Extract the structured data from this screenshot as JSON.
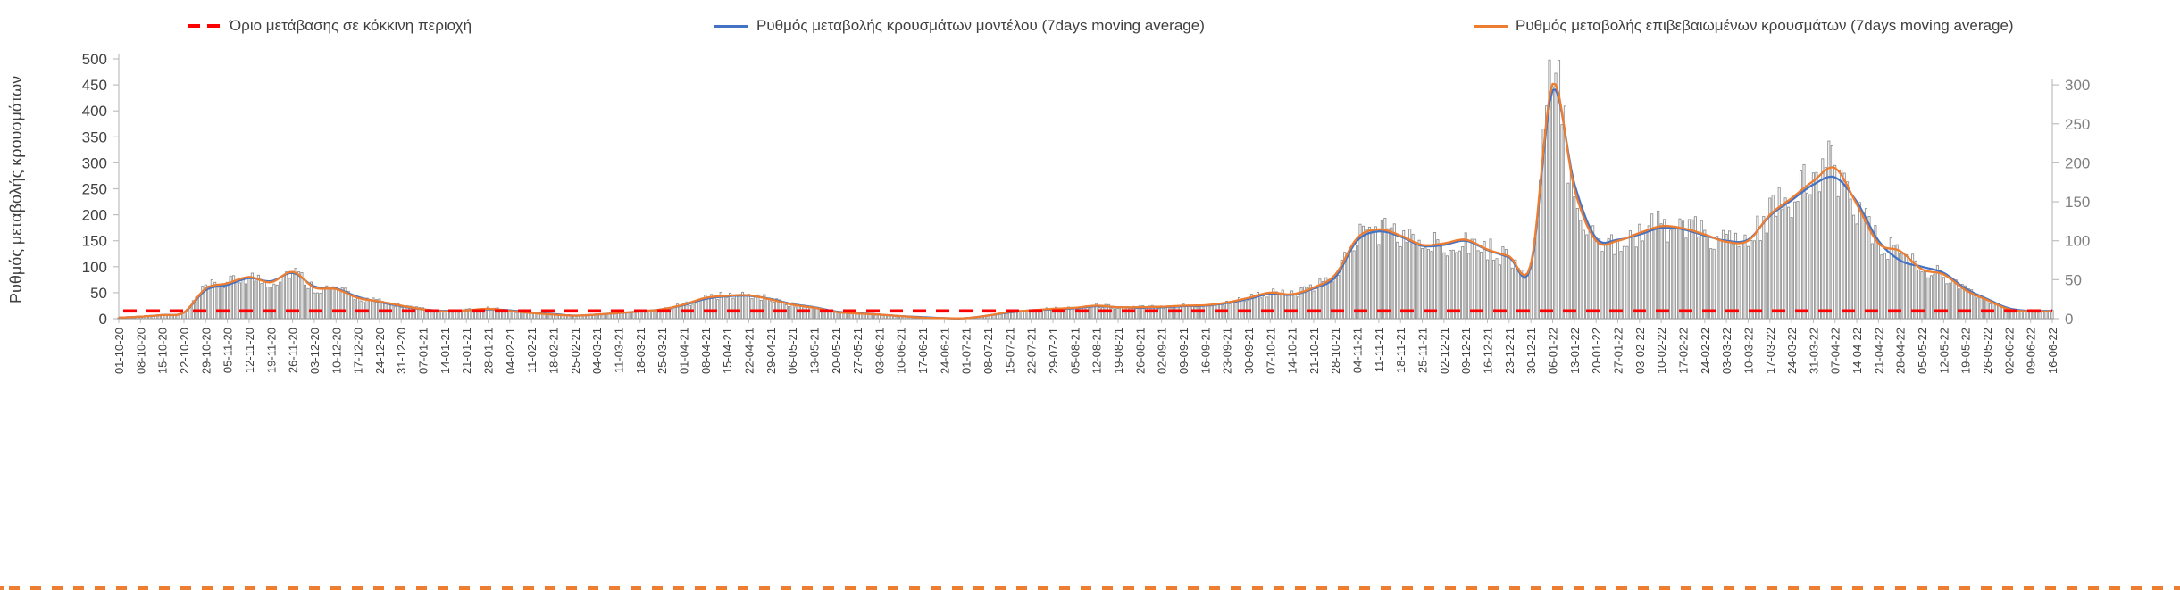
{
  "legend": {
    "items": [
      {
        "id": "threshold",
        "label": "Όριο μετάβασης σε κόκκινη περιοχή",
        "color": "#FF0000",
        "style": "dashed"
      },
      {
        "id": "model",
        "label": "Ρυθμός μεταβολής κρουσμάτων μοντέλου (7days moving average)",
        "color": "#4472C4",
        "style": "solid"
      },
      {
        "id": "confirmed",
        "label": "Ρυθμός μεταβολής επιβεβαιωμένων κρουσμάτων (7days moving average)",
        "color": "#ED7D31",
        "style": "solid"
      }
    ]
  },
  "axes": {
    "y_left": {
      "title": "Ρυθμός μεταβολής κρουσμάτων",
      "min": 0,
      "max": 500,
      "step": 50,
      "ticks": [
        0,
        50,
        100,
        150,
        200,
        250,
        300,
        350,
        400,
        450,
        500
      ]
    },
    "y_right": {
      "min": 0,
      "max": 300,
      "step": 50,
      "ticks": [
        0,
        50,
        100,
        150,
        200,
        250,
        300
      ],
      "unit_scale_vs_left": 1.5
    },
    "x": {
      "rotation": -90
    }
  },
  "chart_data": {
    "type": "line",
    "title": "",
    "legend_position": "top",
    "grid": false,
    "ylim_left": [
      0,
      500
    ],
    "ylim_right": [
      0,
      300
    ],
    "categories": [
      "01-10-20",
      "08-10-20",
      "15-10-20",
      "22-10-20",
      "29-10-20",
      "05-11-20",
      "12-11-20",
      "19-11-20",
      "26-11-20",
      "03-12-20",
      "10-12-20",
      "17-12-20",
      "24-12-20",
      "31-12-20",
      "07-01-21",
      "14-01-21",
      "21-01-21",
      "28-01-21",
      "04-02-21",
      "11-02-21",
      "18-02-21",
      "25-02-21",
      "04-03-21",
      "11-03-21",
      "18-03-21",
      "25-03-21",
      "01-04-21",
      "08-04-21",
      "15-04-21",
      "22-04-21",
      "29-04-21",
      "06-05-21",
      "13-05-21",
      "20-05-21",
      "27-05-21",
      "03-06-21",
      "10-06-21",
      "17-06-21",
      "24-06-21",
      "01-07-21",
      "08-07-21",
      "15-07-21",
      "22-07-21",
      "29-07-21",
      "05-08-21",
      "12-08-21",
      "19-08-21",
      "26-08-21",
      "02-09-21",
      "09-09-21",
      "16-09-21",
      "23-09-21",
      "30-09-21",
      "07-10-21",
      "14-10-21",
      "21-10-21",
      "28-10-21",
      "04-11-21",
      "11-11-21",
      "18-11-21",
      "25-11-21",
      "02-12-21",
      "09-12-21",
      "16-12-21",
      "23-12-21",
      "30-12-21",
      "06-01-22",
      "13-01-22",
      "20-01-22",
      "27-01-22",
      "03-02-22",
      "10-02-22",
      "17-02-22",
      "24-02-22",
      "03-03-22",
      "10-03-22",
      "17-03-22",
      "24-03-22",
      "31-03-22",
      "07-04-22",
      "14-04-22",
      "21-04-22",
      "28-04-22",
      "05-05-22",
      "12-05-22",
      "19-05-22",
      "26-05-22",
      "02-06-22",
      "09-06-22",
      "16-06-22"
    ],
    "series": [
      {
        "name": "Ρυθμός μεταβολής κρουσμάτων μοντέλου (7days moving average)",
        "color": "#4472C4",
        "axis": "left",
        "values": [
          2,
          4,
          7,
          12,
          55,
          65,
          78,
          72,
          88,
          62,
          58,
          42,
          32,
          24,
          18,
          15,
          16,
          18,
          16,
          12,
          9,
          6,
          8,
          11,
          14,
          18,
          26,
          38,
          43,
          44,
          38,
          28,
          22,
          14,
          11,
          8,
          5,
          3,
          1,
          1,
          6,
          12,
          16,
          18,
          20,
          24,
          22,
          21,
          22,
          24,
          25,
          30,
          38,
          48,
          46,
          58,
          80,
          150,
          168,
          158,
          140,
          142,
          150,
          132,
          118,
          100,
          440,
          260,
          155,
          152,
          162,
          175,
          172,
          160,
          150,
          152,
          198,
          228,
          258,
          272,
          225,
          150,
          112,
          100,
          88,
          58,
          38,
          20,
          15,
          15
        ]
      },
      {
        "name": "Ρυθμός μεταβολής επιβεβαιωμένων κρουσμάτων (7days moving average)",
        "color": "#ED7D31",
        "axis": "left",
        "values": [
          2,
          4,
          7,
          12,
          58,
          68,
          80,
          70,
          90,
          60,
          57,
          40,
          33,
          25,
          18,
          14,
          16,
          19,
          15,
          11,
          8,
          6,
          8,
          11,
          14,
          18,
          27,
          40,
          44,
          45,
          37,
          27,
          21,
          13,
          10,
          8,
          5,
          2,
          1,
          1,
          6,
          13,
          16,
          19,
          21,
          25,
          22,
          22,
          23,
          25,
          26,
          31,
          40,
          50,
          47,
          60,
          85,
          155,
          172,
          160,
          142,
          145,
          152,
          133,
          120,
          105,
          452,
          250,
          150,
          150,
          165,
          178,
          174,
          162,
          148,
          150,
          200,
          232,
          265,
          290,
          220,
          145,
          130,
          95,
          85,
          55,
          36,
          18,
          14,
          14
        ]
      }
    ],
    "threshold": {
      "name": "Όριο μετάβασης σε κόκκινη περιοχή",
      "color": "#FF0000",
      "style": "dashed",
      "value_left_axis": 15
    },
    "bars": {
      "description": "daily rate histogram behind the moving-average lines",
      "fill": "#ffffff",
      "stroke": "#8f8f8f"
    }
  }
}
